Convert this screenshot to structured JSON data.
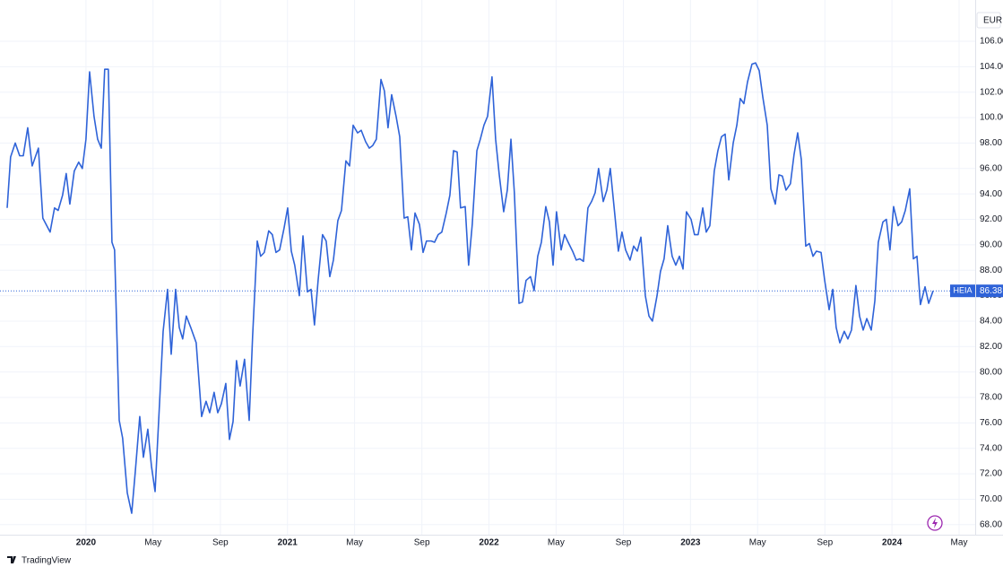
{
  "chart_data": {
    "type": "line",
    "currency": "EUR",
    "watermark": "TradingView",
    "series": [
      {
        "name": "HEIA",
        "color": "#2f63d8",
        "values": [
          92.9,
          96.9,
          98.0,
          97.0,
          97.0,
          99.2,
          96.2,
          97.6,
          92.1,
          91.0,
          92.9,
          92.7,
          93.9,
          95.6,
          93.2,
          95.8,
          96.5,
          96.0,
          98.3,
          103.6,
          100.1,
          98.3,
          97.6,
          103.8,
          103.8,
          90.2,
          89.6,
          76.2,
          74.8,
          70.5,
          68.9,
          72.2,
          76.5,
          73.3,
          75.5,
          72.6,
          70.6,
          77.5,
          83.2,
          86.5,
          81.4,
          86.5,
          83.5,
          82.6,
          84.4,
          83.5,
          82.3,
          76.5,
          77.7,
          76.8,
          78.4,
          76.8,
          77.5,
          79.1,
          74.7,
          76.1,
          80.9,
          78.9,
          81.0,
          76.2,
          82.8,
          90.3,
          89.1,
          89.4,
          91.1,
          90.8,
          89.4,
          89.6,
          91.3,
          92.9,
          89.5,
          88.4,
          86.0,
          90.7,
          86.3,
          86.5,
          83.7,
          87.2,
          90.8,
          90.3,
          87.5,
          88.8,
          91.9,
          92.7,
          96.6,
          96.2,
          99.4,
          98.8,
          99.0,
          98.1,
          97.6,
          97.8,
          98.3,
          103.0,
          102.1,
          99.2,
          101.8,
          100.1,
          98.5,
          92.1,
          92.2,
          89.6,
          92.5,
          91.6,
          89.4,
          90.3,
          90.3,
          90.2,
          90.8,
          91.0,
          92.5,
          93.9,
          97.4,
          97.3,
          92.9,
          93.0,
          88.4,
          91.6,
          97.4,
          98.3,
          99.4,
          100.1,
          103.2,
          98.3,
          95.5,
          92.6,
          94.3,
          98.3,
          94.1,
          85.4,
          85.5,
          87.2,
          87.5,
          86.4,
          89.1,
          90.2,
          93.0,
          91.8,
          88.4,
          92.6,
          89.6,
          90.8,
          90.2,
          89.5,
          88.8,
          88.9,
          88.7,
          92.9,
          93.4,
          94.1,
          96.0,
          93.4,
          94.3,
          96.0,
          92.3,
          89.5,
          91.0,
          89.6,
          88.8,
          89.9,
          89.5,
          90.6,
          86.0,
          84.4,
          84.0,
          86.0,
          87.9,
          88.9,
          91.5,
          89.1,
          88.4,
          89.1,
          88.1,
          92.6,
          92.0,
          90.8,
          90.8,
          92.9,
          91.0,
          91.5,
          95.8,
          97.4,
          98.5,
          98.7,
          95.1,
          98.0,
          99.4,
          101.5,
          101.1,
          102.8,
          104.2,
          104.3,
          103.7,
          101.6,
          99.4,
          94.4,
          93.2,
          95.5,
          95.4,
          94.3,
          94.8,
          97.1,
          98.8,
          96.7,
          89.9,
          90.1,
          89.1,
          89.5,
          89.4,
          87.2,
          84.9,
          86.5,
          83.5,
          82.3,
          83.2,
          82.6,
          83.3,
          86.8,
          84.4,
          83.3,
          84.2,
          83.3,
          85.6,
          90.2,
          91.8,
          92.0,
          89.6,
          93.0,
          91.5,
          91.8,
          92.7,
          94.4,
          88.9,
          89.1,
          85.3,
          86.7,
          85.4,
          86.38
        ]
      }
    ],
    "x": [
      2019.609,
      2019.626,
      2019.649,
      2019.671,
      2019.689,
      2019.711,
      2019.733,
      2019.764,
      2019.786,
      2019.822,
      2019.844,
      2019.862,
      2019.884,
      2019.902,
      2019.92,
      2019.942,
      2019.964,
      2019.982,
      2020.0,
      2020.018,
      2020.04,
      2020.058,
      2020.076,
      2020.093,
      2020.111,
      2020.129,
      2020.142,
      2020.165,
      2020.182,
      2020.205,
      2020.227,
      2020.245,
      2020.267,
      2020.285,
      2020.307,
      2020.325,
      2020.343,
      2020.365,
      2020.383,
      2020.405,
      2020.423,
      2020.445,
      2020.463,
      2020.48,
      2020.498,
      2020.52,
      2020.547,
      2020.574,
      2020.596,
      2020.614,
      2020.636,
      2020.654,
      2020.672,
      2020.694,
      2020.712,
      2020.73,
      2020.747,
      2020.765,
      2020.787,
      2020.81,
      2020.827,
      2020.85,
      2020.867,
      2020.885,
      2020.907,
      2020.925,
      2020.943,
      2020.961,
      2020.983,
      2021.001,
      2021.019,
      2021.036,
      2021.059,
      2021.077,
      2021.099,
      2021.117,
      2021.134,
      2021.152,
      2021.174,
      2021.192,
      2021.21,
      2021.228,
      2021.25,
      2021.268,
      2021.29,
      2021.308,
      2021.326,
      2021.348,
      2021.366,
      2021.388,
      2021.406,
      2021.423,
      2021.441,
      2021.464,
      2021.481,
      2021.499,
      2021.517,
      2021.539,
      2021.557,
      2021.579,
      2021.597,
      2021.615,
      2021.633,
      2021.655,
      2021.673,
      2021.69,
      2021.713,
      2021.73,
      2021.748,
      2021.766,
      2021.788,
      2021.806,
      2021.824,
      2021.842,
      2021.859,
      2021.882,
      2021.899,
      2021.917,
      2021.94,
      2021.957,
      2021.975,
      2021.993,
      2022.015,
      2022.033,
      2022.051,
      2022.073,
      2022.091,
      2022.109,
      2022.126,
      2022.149,
      2022.166,
      2022.184,
      2022.206,
      2022.224,
      2022.242,
      2022.26,
      2022.282,
      2022.3,
      2022.318,
      2022.335,
      2022.358,
      2022.375,
      2022.393,
      2022.415,
      2022.433,
      2022.451,
      2022.469,
      2022.491,
      2022.509,
      2022.527,
      2022.544,
      2022.567,
      2022.585,
      2022.602,
      2022.625,
      2022.642,
      2022.66,
      2022.678,
      2022.7,
      2022.718,
      2022.736,
      2022.754,
      2022.776,
      2022.794,
      2022.811,
      2022.834,
      2022.851,
      2022.869,
      2022.887,
      2022.909,
      2022.927,
      2022.945,
      2022.963,
      2022.98,
      2023.003,
      2023.02,
      2023.038,
      2023.061,
      2023.078,
      2023.096,
      2023.118,
      2023.136,
      2023.154,
      2023.172,
      2023.19,
      2023.212,
      2023.23,
      2023.247,
      2023.265,
      2023.283,
      2023.305,
      2023.323,
      2023.341,
      2023.359,
      2023.381,
      2023.399,
      2023.421,
      2023.439,
      2023.456,
      2023.474,
      2023.496,
      2023.514,
      2023.532,
      2023.55,
      2023.572,
      2023.59,
      2023.608,
      2023.625,
      2023.648,
      2023.666,
      2023.688,
      2023.706,
      2023.723,
      2023.741,
      2023.763,
      2023.781,
      2023.799,
      2023.821,
      2023.839,
      2023.857,
      2023.875,
      2023.897,
      2023.915,
      2023.932,
      2023.955,
      2023.972,
      2023.99,
      2024.008,
      2024.03,
      2024.048,
      2024.066,
      2024.088,
      2024.106,
      2024.124,
      2024.141,
      2024.164,
      2024.182,
      2024.204
    ],
    "xlim": [
      2019.609,
      2024.413
    ],
    "xticks": [
      {
        "value": 2020,
        "label": "2020"
      },
      {
        "value": 2020.333,
        "label": "May"
      },
      {
        "value": 2020.667,
        "label": "Sep"
      },
      {
        "value": 2021,
        "label": "2021"
      },
      {
        "value": 2021.333,
        "label": "May"
      },
      {
        "value": 2021.667,
        "label": "Sep"
      },
      {
        "value": 2022,
        "label": "2022"
      },
      {
        "value": 2022.333,
        "label": "May"
      },
      {
        "value": 2022.667,
        "label": "Sep"
      },
      {
        "value": 2023,
        "label": "2023"
      },
      {
        "value": 2023.333,
        "label": "May"
      },
      {
        "value": 2023.667,
        "label": "Sep"
      },
      {
        "value": 2024,
        "label": "2024"
      },
      {
        "value": 2024.333,
        "label": "May"
      }
    ],
    "ylim": [
      67.21,
      108.54
    ],
    "yticks": [
      {
        "value": 68,
        "label": "68.00"
      },
      {
        "value": 70,
        "label": "70.00"
      },
      {
        "value": 72,
        "label": "72.00"
      },
      {
        "value": 74,
        "label": "74.00"
      },
      {
        "value": 76,
        "label": "76.00"
      },
      {
        "value": 78,
        "label": "78.00"
      },
      {
        "value": 80,
        "label": "80.00"
      },
      {
        "value": 82,
        "label": "82.00"
      },
      {
        "value": 84,
        "label": "84.00"
      },
      {
        "value": 86,
        "label": "86.00"
      },
      {
        "value": 88,
        "label": "88.00"
      },
      {
        "value": 90,
        "label": "90.00"
      },
      {
        "value": 92,
        "label": "92.00"
      },
      {
        "value": 94,
        "label": "94.00"
      },
      {
        "value": 96,
        "label": "96.00"
      },
      {
        "value": 98,
        "label": "98.00"
      },
      {
        "value": 100,
        "label": "100.00"
      },
      {
        "value": 102,
        "label": "102.00"
      },
      {
        "value": 104,
        "label": "104.00"
      },
      {
        "value": 106,
        "label": "106.00"
      }
    ],
    "grid": true
  }
}
